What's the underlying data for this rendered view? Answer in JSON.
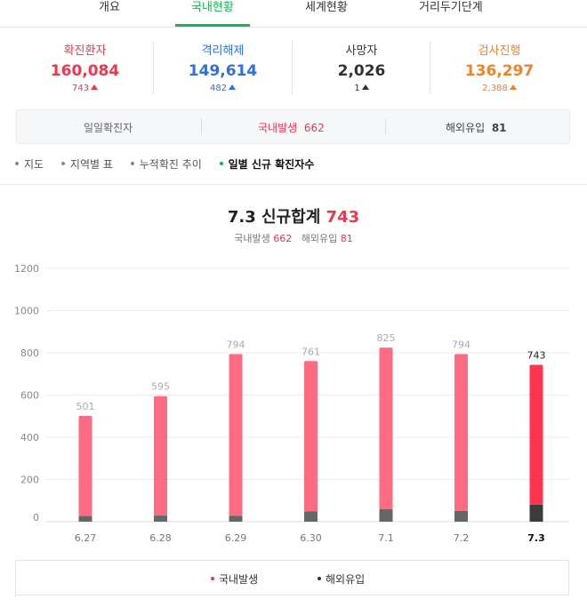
{
  "tabs": [
    {
      "label": "개요"
    },
    {
      "label": "국내현황",
      "active": true
    },
    {
      "label": "세계현황"
    },
    {
      "label": "거리두기단계"
    }
  ],
  "stats": [
    {
      "label": "확진환자",
      "value": "160,084",
      "delta": "743",
      "color": "#f0364e"
    },
    {
      "label": "격리해제",
      "value": "149,614",
      "delta": "482",
      "color": "#2f6fe0"
    },
    {
      "label": "사망자",
      "value": "2,026",
      "delta": "1",
      "color": "#333333"
    },
    {
      "label": "검사진행",
      "value": "136,297",
      "delta": "2,388",
      "color": "#f2812c"
    }
  ],
  "summary": {
    "daily_label": "일일확진자",
    "domestic_label": "국내발생",
    "domestic_value": "662",
    "overseas_label": "해외유입",
    "overseas_value": "81"
  },
  "subnav": [
    {
      "label": "지도"
    },
    {
      "label": "지역별 표"
    },
    {
      "label": "누적확진 추이"
    },
    {
      "label": "일별 신규 확진자수",
      "active": true
    }
  ],
  "chart_header": {
    "title_prefix": "7.3 신규합계",
    "title_total": "743",
    "domestic_label": "국내발생",
    "domestic_value": "662",
    "overseas_label": "해외유입",
    "overseas_value": "81"
  },
  "chart_data": {
    "type": "bar",
    "stacked": true,
    "categories": [
      "6.27",
      "6.28",
      "6.29",
      "6.30",
      "7.1",
      "7.2",
      "7.3"
    ],
    "totals": [
      501,
      595,
      794,
      761,
      825,
      794,
      743
    ],
    "series": [
      {
        "name": "국내발생",
        "values": [
          474,
          566,
          766,
          712,
          765,
          743,
          662
        ],
        "color": "#ff6b81",
        "highlight_color": "#ff344f"
      },
      {
        "name": "해외유입",
        "values": [
          27,
          29,
          28,
          49,
          60,
          51,
          81
        ],
        "color": "#666666",
        "highlight_color": "#3b3b3b"
      }
    ],
    "y_ticks": [
      0,
      200,
      400,
      600,
      800,
      1000,
      1200
    ],
    "ylim": [
      0,
      1200
    ],
    "grid": true,
    "highlight_category": "7.3",
    "legend_position": "bottom"
  },
  "legend": [
    {
      "label": "국내발생",
      "color": "#f0364e"
    },
    {
      "label": "해외유입",
      "color": "#333333"
    }
  ]
}
